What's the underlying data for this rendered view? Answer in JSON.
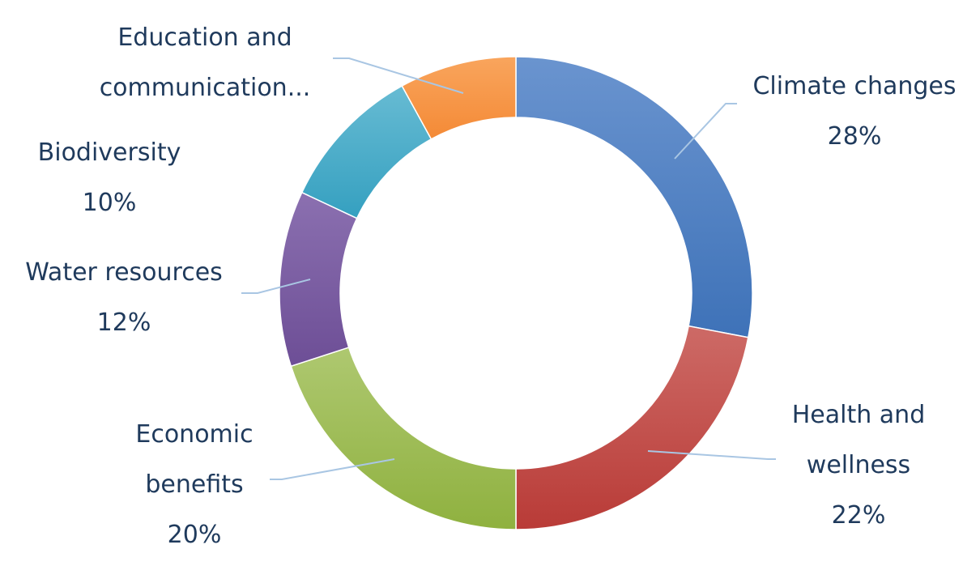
{
  "chart_data": {
    "type": "pie",
    "variant": "donut",
    "title": "",
    "slices": [
      {
        "label": [
          "Climate changes"
        ],
        "value": 28,
        "value_label": "28%",
        "color": "#4a7ec0"
      },
      {
        "label": [
          "Health and",
          "wellness"
        ],
        "value": 22,
        "value_label": "22%",
        "color": "#c0443f"
      },
      {
        "label": [
          "Economic",
          "benefits"
        ],
        "value": 20,
        "value_label": "20%",
        "color": "#9bbb52"
      },
      {
        "label": [
          "Water resources"
        ],
        "value": 12,
        "value_label": "12%",
        "color": "#7a5ba0"
      },
      {
        "label": [
          "Biodiversity"
        ],
        "value": 10,
        "value_label": "10%",
        "color": "#45a9c7"
      },
      {
        "label": [
          "Education and",
          "communication..."
        ],
        "value": 8,
        "value_label": "",
        "color": "#f79645"
      }
    ],
    "legend": "none",
    "data_labels": "outside-with-leader-lines"
  }
}
